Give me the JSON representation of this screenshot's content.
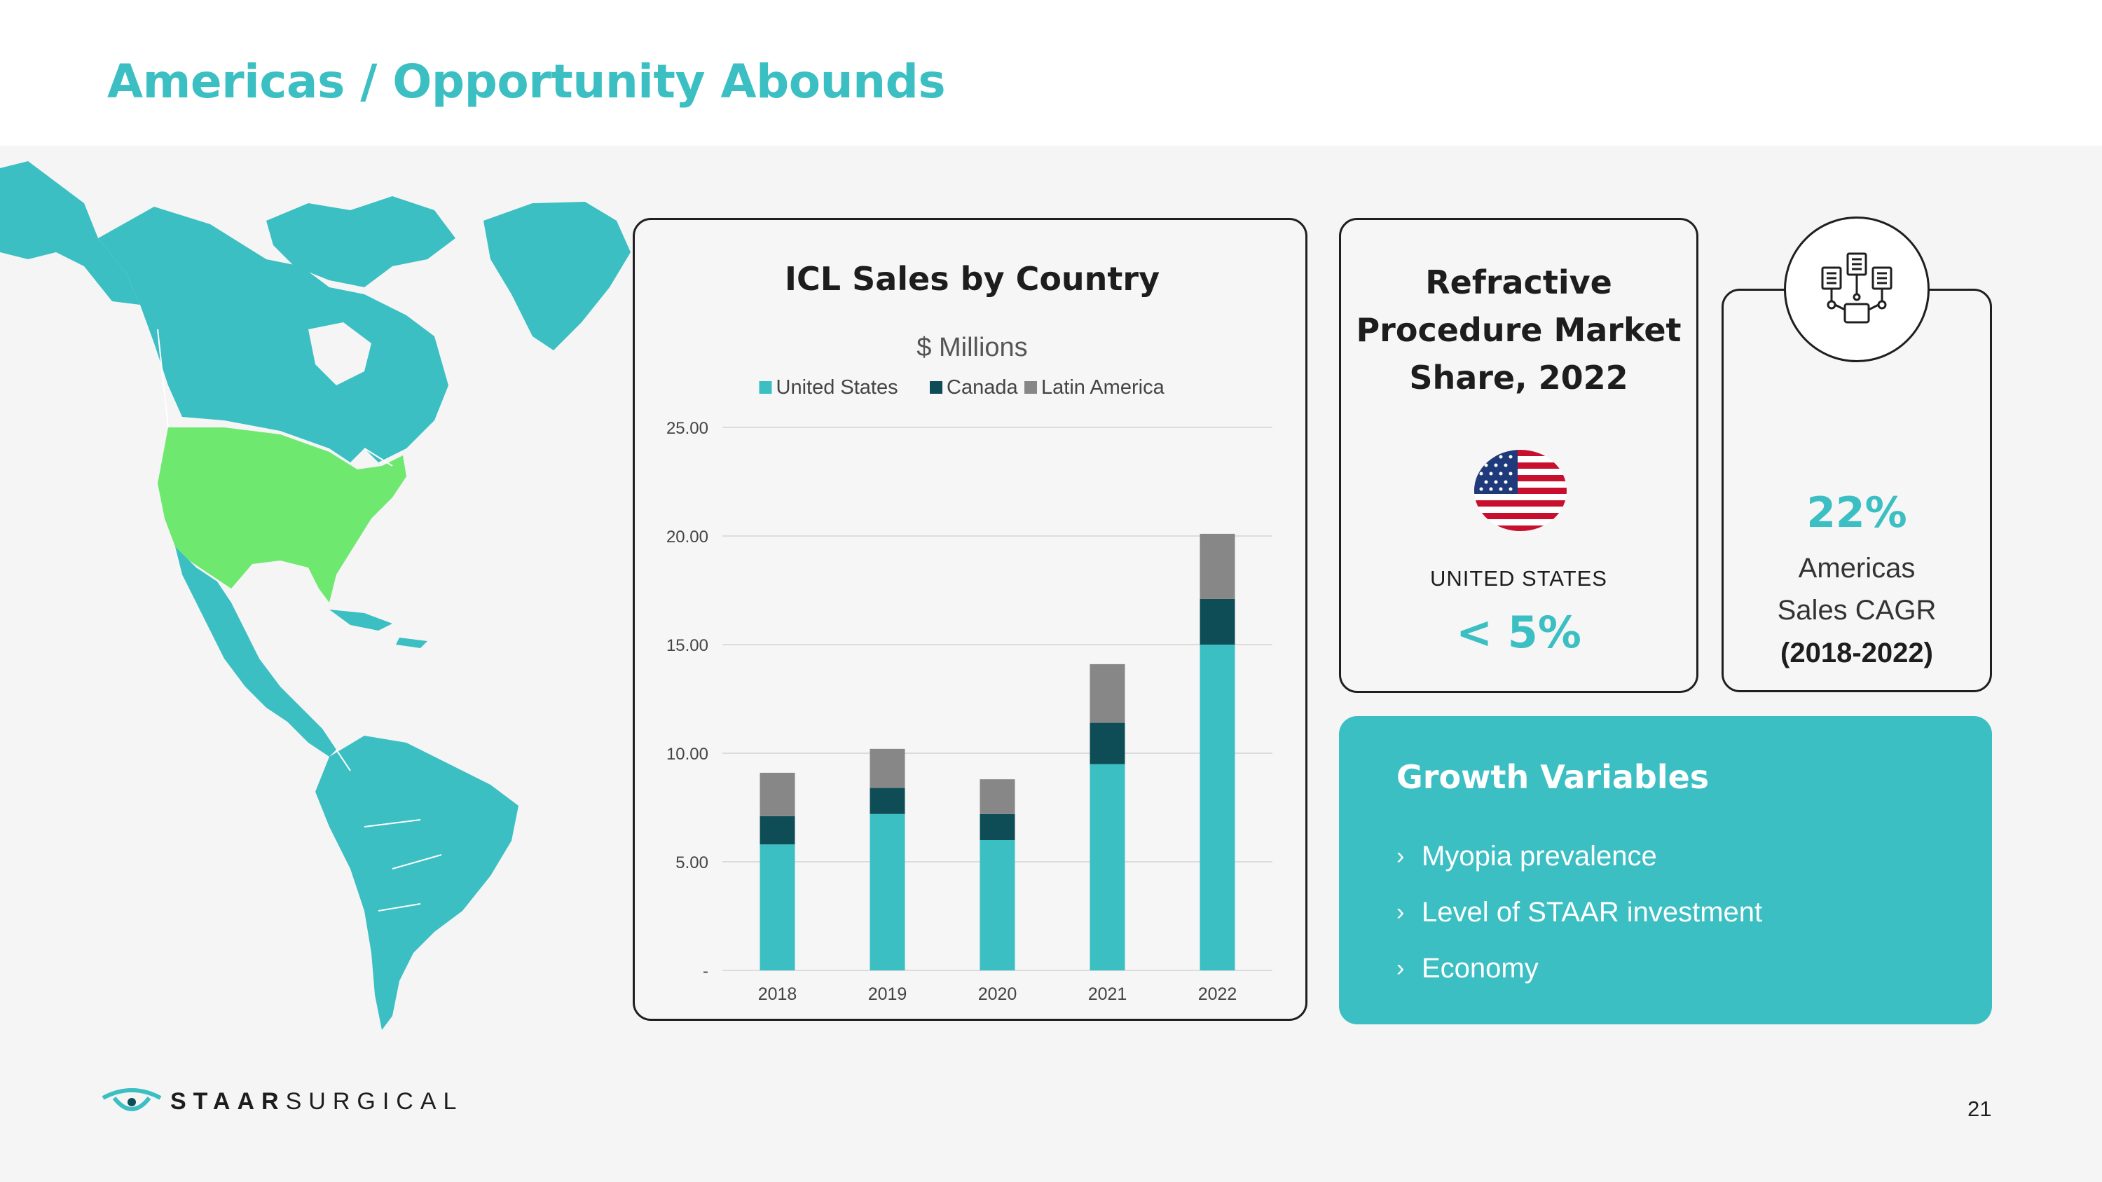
{
  "page": {
    "title": "Americas / Opportunity Abounds",
    "page_number": "21"
  },
  "logo": {
    "text_bold": "STAAR",
    "text_light": "SURGICAL"
  },
  "chart_data": {
    "type": "bar",
    "stacked": true,
    "title": "ICL Sales by Country",
    "subtitle": "$ Millions",
    "categories": [
      "2018",
      "2019",
      "2020",
      "2021",
      "2022"
    ],
    "series": [
      {
        "name": "United States",
        "values": [
          5.8,
          7.2,
          6.0,
          9.5,
          15.0
        ],
        "color": "#3bbfc3"
      },
      {
        "name": "Canada",
        "values": [
          1.3,
          1.2,
          1.2,
          1.9,
          2.1
        ],
        "color": "#0f4d56"
      },
      {
        "name": "Latin America",
        "values": [
          2.0,
          1.8,
          1.6,
          2.7,
          3.0
        ],
        "color": "#878787"
      }
    ],
    "ylim": [
      0,
      25
    ],
    "yticks": [
      "-",
      "5.00",
      "10.00",
      "15.00",
      "20.00",
      "25.00"
    ],
    "legend": "top",
    "grid": true
  },
  "market_share": {
    "title_lines": [
      "Refractive",
      "Procedure Market",
      "Share, 2022"
    ],
    "country": "UNITED STATES",
    "value": "< 5%",
    "flag_icon": "us-flag-icon"
  },
  "cagr": {
    "value": "22%",
    "label_lines": [
      "Americas",
      "Sales CAGR"
    ],
    "period": "(2018-2022)",
    "icon": "network-documents-icon"
  },
  "growth": {
    "title": "Growth Variables",
    "items": [
      "Myopia prevalence",
      "Level of STAAR investment",
      "Economy"
    ]
  },
  "colors": {
    "accent": "#3bbfc3",
    "highlight_us": "#6ee86f",
    "dark_teal": "#0f4d56",
    "gray": "#878787"
  }
}
